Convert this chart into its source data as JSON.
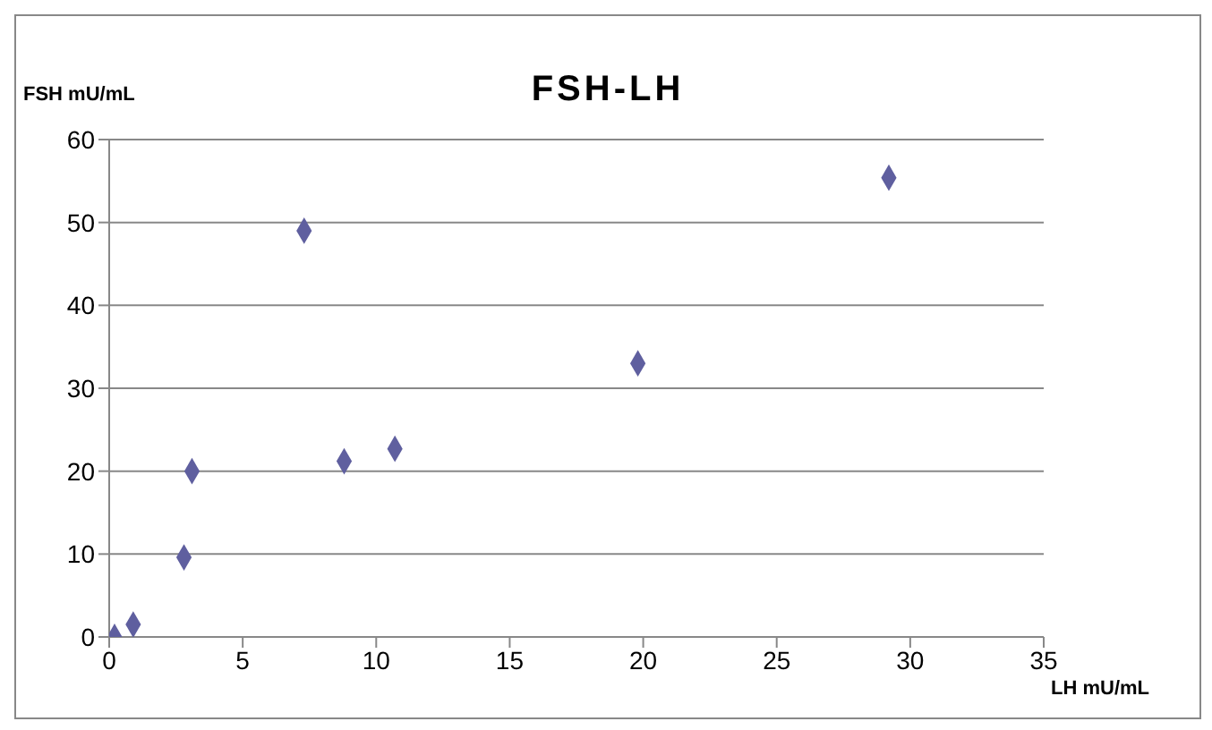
{
  "chart_data": {
    "type": "scatter",
    "title": "FSH-LH",
    "xlabel": "LH mU/mL",
    "ylabel": "FSH mU/mL",
    "x": [
      0.2,
      0.9,
      2.8,
      3.1,
      7.3,
      8.8,
      10.7,
      19.8,
      29.2
    ],
    "values": [
      0,
      1.5,
      9.6,
      20,
      49,
      21.2,
      22.7,
      33,
      55.4
    ],
    "color": "#5f5f9f",
    "marker": "diamond",
    "xlim": [
      0,
      35
    ],
    "xticks": [
      0,
      5,
      10,
      15,
      20,
      25,
      30,
      35
    ],
    "ylim": [
      0,
      60
    ],
    "yticks": [
      0,
      10,
      20,
      30,
      40,
      50,
      60
    ],
    "grid": "y",
    "legend": false
  }
}
